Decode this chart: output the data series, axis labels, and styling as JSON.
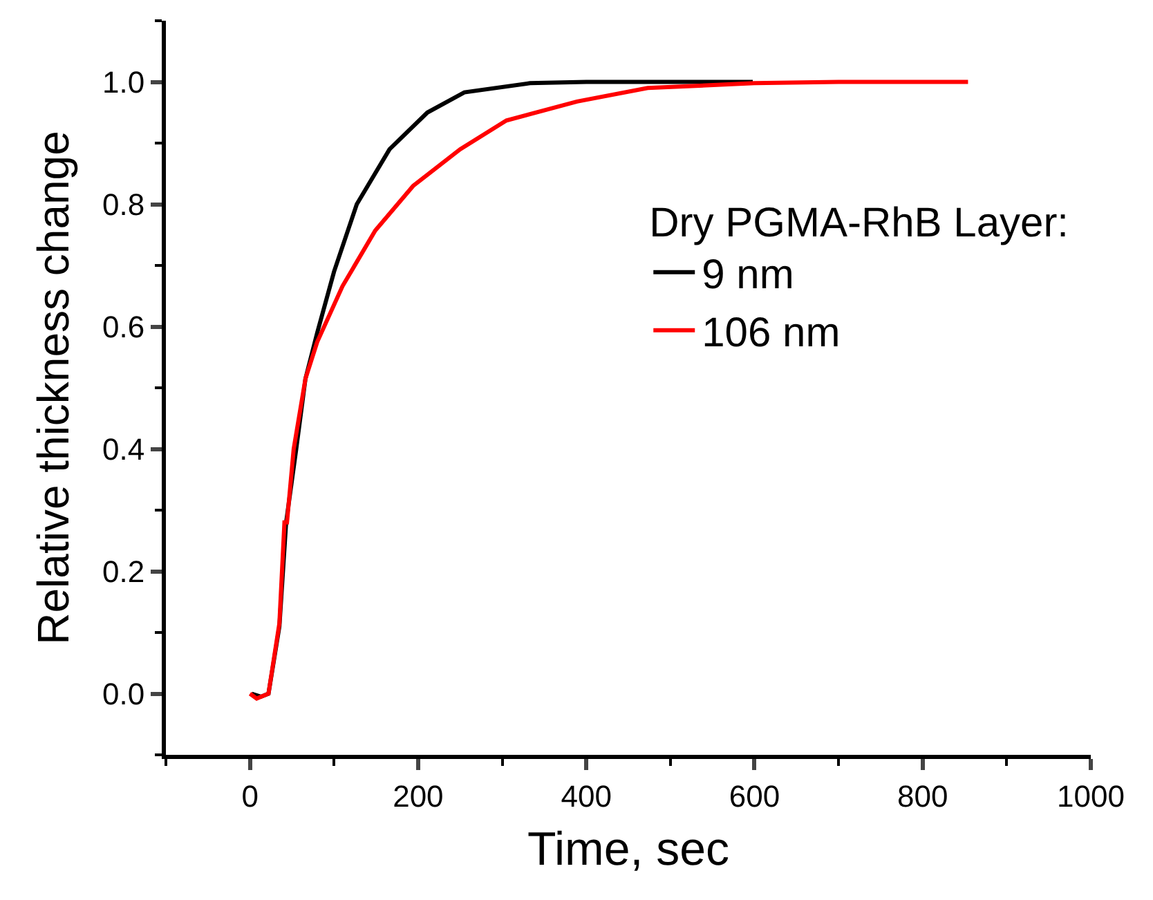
{
  "chart_data": {
    "type": "line",
    "xlabel": "Time, sec",
    "ylabel": "Relative thickness change",
    "legend_title": "Dry PGMA-RhB Layer:",
    "legend": "right",
    "marker": "none",
    "line_style": "solid",
    "xlim": [
      -100,
      1000
    ],
    "xticks": [
      0,
      200,
      400,
      600,
      800,
      1000
    ],
    "ylim": [
      -0.1,
      1.1
    ],
    "yticks": [
      {
        "value": 0,
        "label": "0.0"
      },
      0.2,
      0.4,
      0.6,
      0.8,
      {
        "value": 1,
        "label": "1.0"
      }
    ],
    "series": [
      {
        "name": "9 nm",
        "color": "#000000",
        "x": [
          2,
          13,
          22,
          35,
          43,
          55,
          66,
          80,
          100,
          127,
          166,
          211,
          255,
          333,
          400,
          500,
          598
        ],
        "values": [
          0,
          -0.005,
          0,
          0.11,
          0.28,
          0.4,
          0.515,
          0.59,
          0.69,
          0.8,
          0.89,
          0.95,
          0.983,
          0.998,
          1.0,
          1.0,
          1.0
        ]
      },
      {
        "name": "106 nm",
        "color": "#ff0000",
        "x": [
          0,
          8,
          22,
          35,
          41,
          44,
          52,
          66,
          80,
          110,
          149,
          194,
          250,
          305,
          389,
          473,
          600,
          700,
          854
        ],
        "values": [
          0,
          -0.008,
          0,
          0.115,
          0.28,
          0.28,
          0.4,
          0.515,
          0.575,
          0.666,
          0.757,
          0.83,
          0.89,
          0.937,
          0.968,
          0.99,
          0.998,
          1.0,
          1.0
        ]
      }
    ]
  }
}
